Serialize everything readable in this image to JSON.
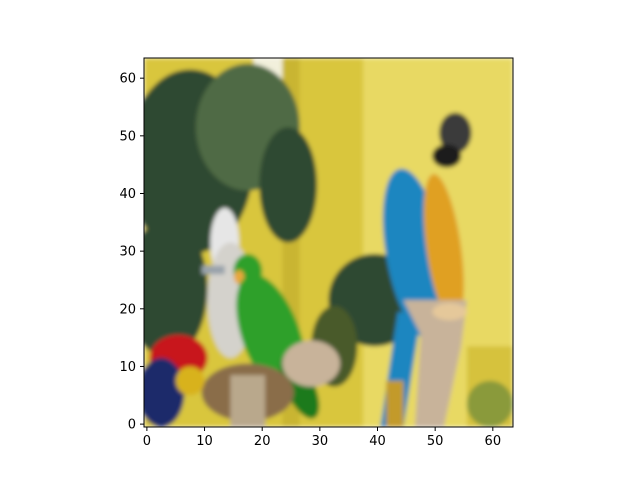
{
  "chart_data": {
    "type": "heatmap",
    "title": "",
    "xlabel": "",
    "ylabel": "",
    "image_resolution": [
      64,
      64
    ],
    "xlim": [
      -0.5,
      63.5
    ],
    "ylim": [
      63.5,
      -0.5
    ],
    "x_ticks": [
      0,
      10,
      20,
      30,
      40,
      50,
      60
    ],
    "y_ticks": [
      0,
      10,
      20,
      30,
      40,
      50,
      60
    ],
    "x_tick_labels": [
      "0",
      "10",
      "20",
      "30",
      "40",
      "50",
      "60"
    ],
    "y_tick_labels": [
      "0",
      "10",
      "20",
      "30",
      "40",
      "50",
      "60"
    ],
    "grid": false,
    "colors": {
      "wall_yellow": "#d9c63c",
      "wall_light": "#e8d964",
      "pillar_white": "#f2f0dc",
      "palm_dark": "#2f4a30",
      "palm_mid": "#4f6b44",
      "macaw_blue": "#1f86c0",
      "macaw_gold": "#e0a020",
      "macaw_head": "#3a3a3a",
      "parrot_green": "#2fa02a",
      "cockatoo_white": "#e6e6e6",
      "perch_wood": "#c8b39a",
      "red_parrot": "#c8141e",
      "dark_blue": "#1a2a6a",
      "branch_brown": "#8a6d4a"
    }
  }
}
